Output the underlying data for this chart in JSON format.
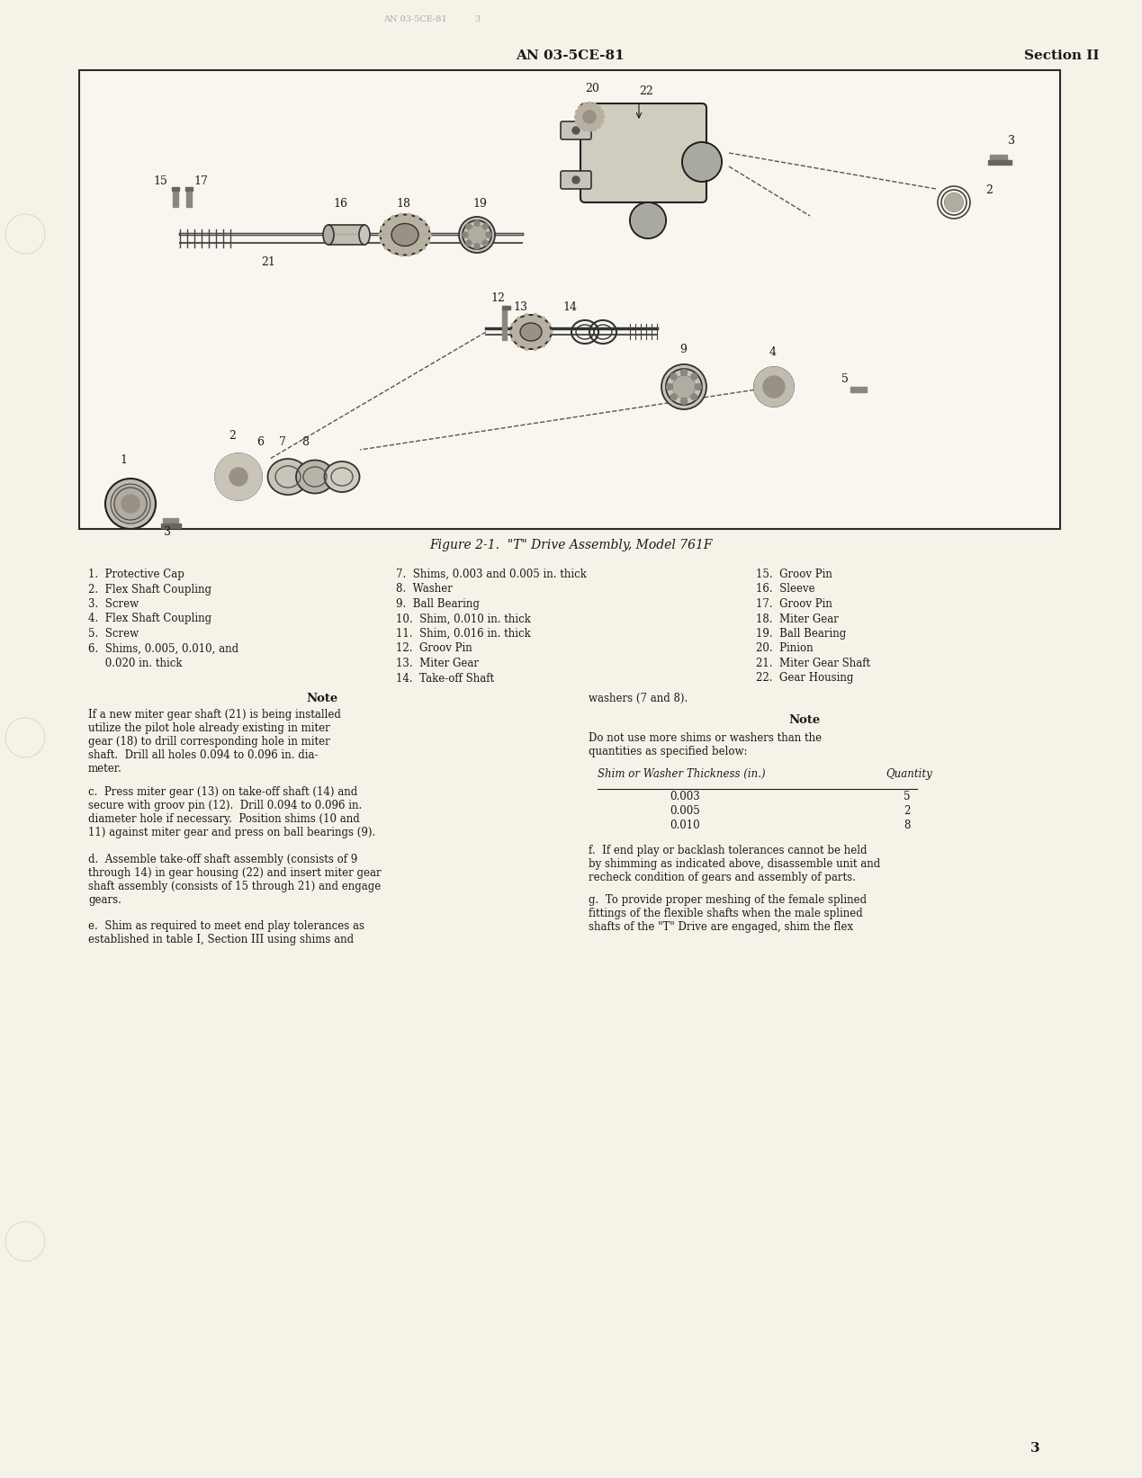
{
  "page_bg_color": "#f5f3e8",
  "header_doc_number": "AN 03-5CE-81",
  "header_section": "Section II",
  "figure_caption": "Figure 2-1.  \"T\" Drive Assembly, Model 761F",
  "parts_list_col1": [
    "1.  Protective Cap",
    "2.  Flex Shaft Coupling",
    "3.  Screw",
    "4.  Flex Shaft Coupling",
    "5.  Screw",
    "6.  Shims, 0.005, 0.010, and",
    "     0.020 in. thick"
  ],
  "parts_list_col2": [
    "7.  Shims, 0.003 and 0.005 in. thick",
    "8.  Washer",
    "9.  Ball Bearing",
    "10.  Shim, 0.010 in. thick",
    "11.  Shim, 0.016 in. thick",
    "12.  Groov Pin",
    "13.  Miter Gear",
    "14.  Take-off Shaft"
  ],
  "parts_list_col3": [
    "15.  Groov Pin",
    "16.  Sleeve",
    "17.  Groov Pin",
    "18.  Miter Gear",
    "19.  Ball Bearing",
    "20.  Pinion",
    "21.  Miter Gear Shaft",
    "22.  Gear Housing"
  ],
  "note1_title": "Note",
  "note1_text": "If a new miter gear shaft (21) is being installed utilize the pilot hole already existing in miter gear (18) to drill corresponding hole in miter shaft. Drill all holes 0.094 to 0.096 in. diameter.",
  "para_c": "c.  Press miter gear (13) on take-off shaft (14) and secure with groov pin (12).  Drill 0.094 to 0.096 in. diameter hole if necessary.  Position shims (10 and 11) against miter gear and press on ball bearings (9).",
  "para_d": "d.  Assemble take-off shaft assembly (consists of 9 through 14) in gear housing (22) and insert miter gear shaft assembly (consists of 15 through 21) and engage gears.",
  "para_e": "e.  Shim as required to meet end play tolerances as established in table I, Section III using shims and",
  "note2_title": "Note",
  "note2_text_right": "Do not use more shims or washers than the quantities as specified below:",
  "table_header": [
    "Shim or Washer Thickness (in.)",
    "Quantity"
  ],
  "table_rows": [
    [
      "0.003",
      "5"
    ],
    [
      "0.005",
      "2"
    ],
    [
      "0.010",
      "8"
    ]
  ],
  "washers_text": "washers (7 and 8).",
  "para_f": "f.  If end play or backlash tolerances cannot be held by shimming as indicated above, disassemble unit and recheck condition of gears and assembly of parts.",
  "para_g": "g.  To provide proper meshing of the female splined fittings of the flexible shafts when the male splined shafts of the \"T\" Drive are engaged, shim the flex",
  "page_number": "3",
  "text_color": "#1a1a1a",
  "box_border_color": "#2a2a2a",
  "figure_box_bg": "#f8f6ee"
}
